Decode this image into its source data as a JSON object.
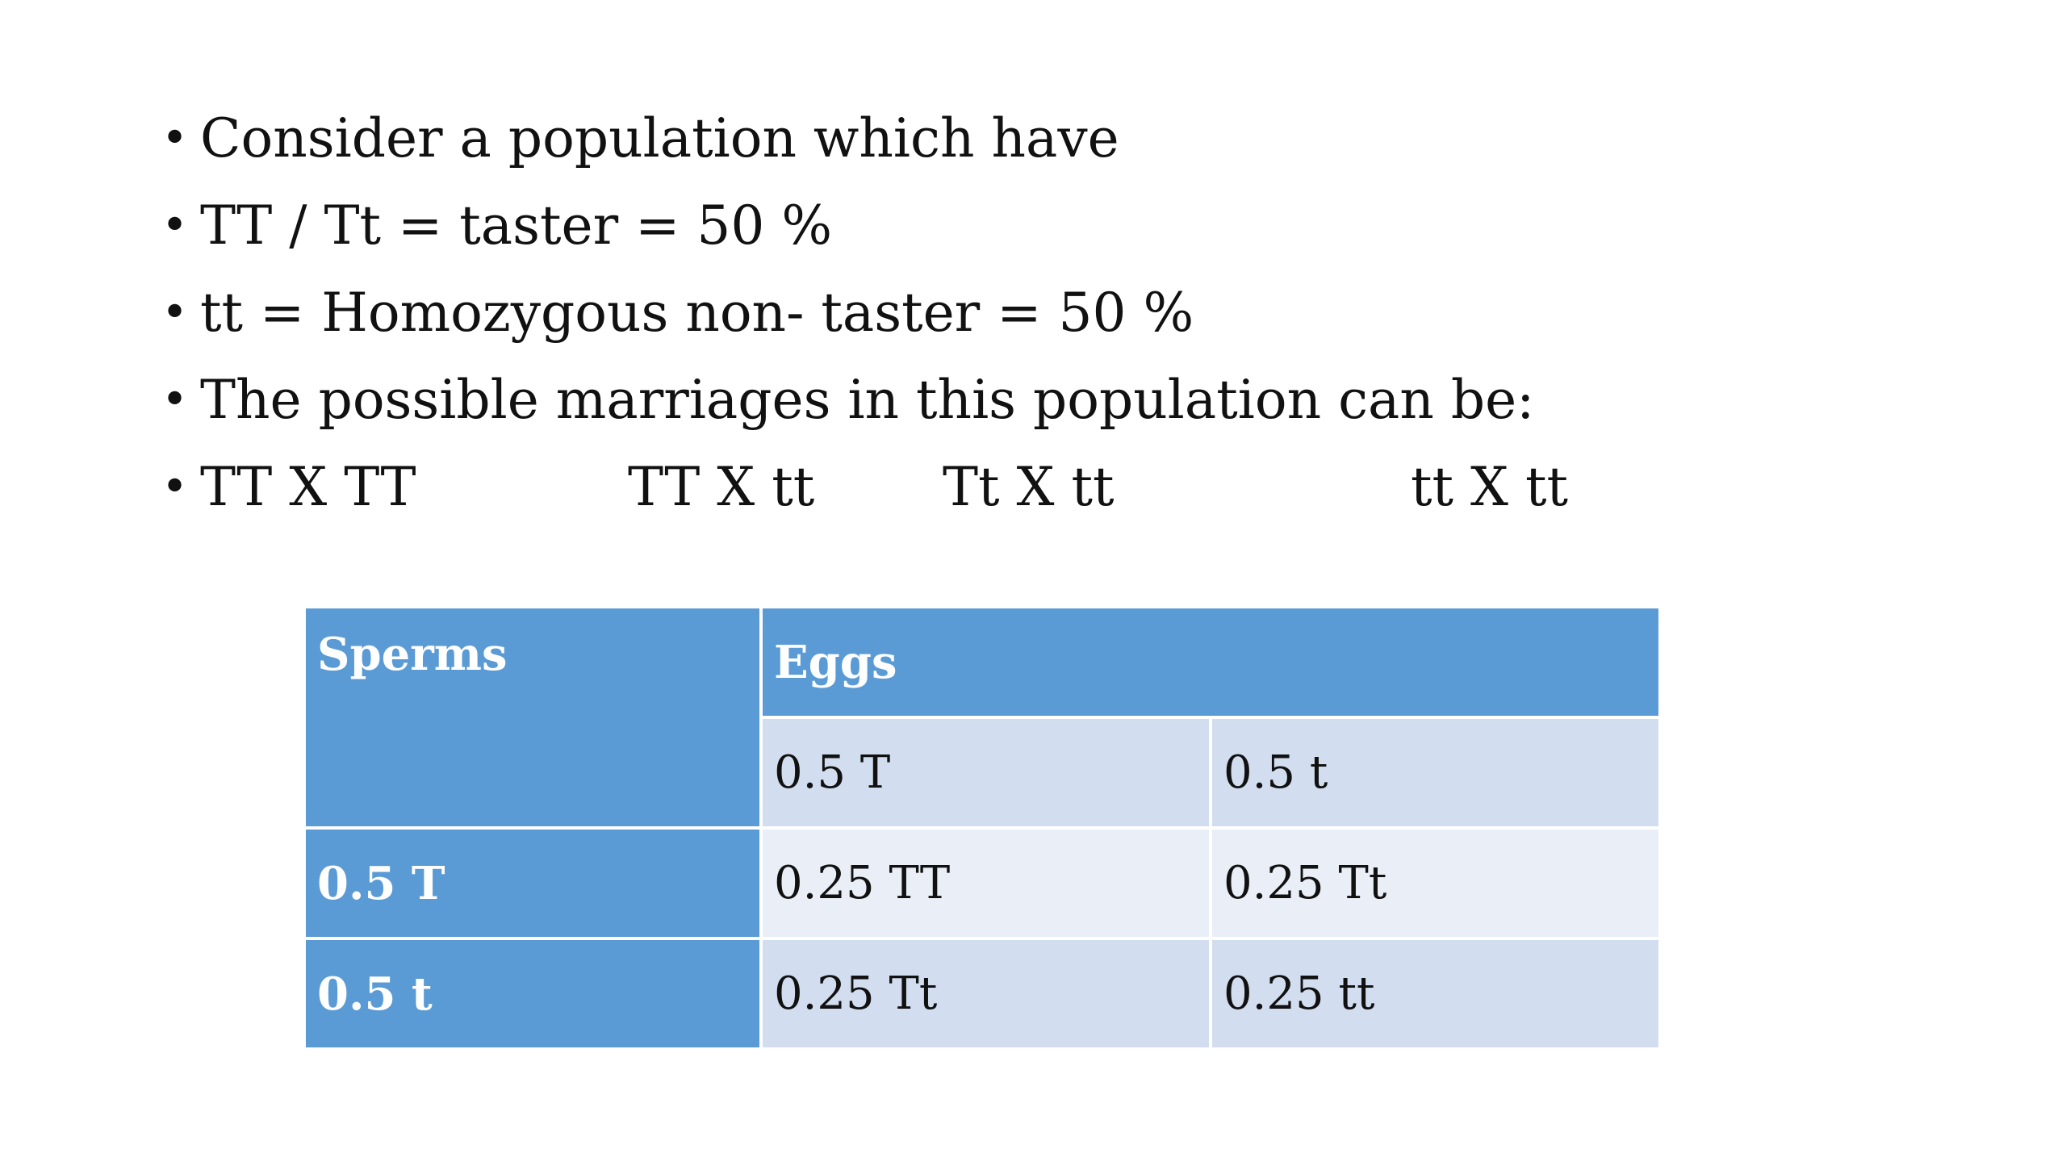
{
  "bullets": [
    "Consider a population which have",
    "TT / Tt = taster = 50 %",
    "tt = Homozygous non- taster = 50 %",
    "The possible marriages in this population can be:"
  ],
  "bullet_symbol": "•",
  "crosses": [
    "TT X TT",
    "TT X tt",
    "Tt X tt",
    "tt X tt"
  ],
  "table": {
    "sperms_label": "Sperms",
    "eggs_label": "Eggs",
    "egg_columns": [
      "0.5 T",
      "0.5 t"
    ],
    "rows": [
      {
        "sperm": "0.5 T",
        "cells": [
          "0.25 TT",
          "0.25 Tt"
        ]
      },
      {
        "sperm": "0.5 t",
        "cells": [
          "0.25 Tt",
          "0.25 tt"
        ]
      }
    ]
  },
  "colors": {
    "header_blue": "#5b9bd5",
    "band_dark": "#d2deef",
    "band_light": "#eaeff7"
  }
}
